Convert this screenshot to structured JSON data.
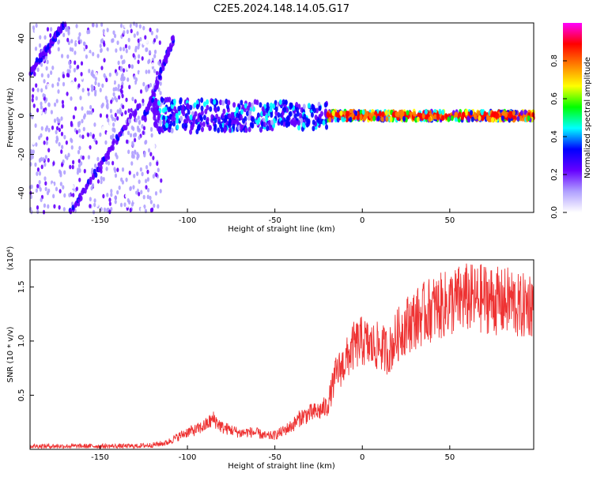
{
  "title": "C2E5.2024.148.14.05.G17",
  "chart_data": [
    {
      "type": "heatmap",
      "xlabel": "Height of straight line (km)",
      "ylabel": "Frequency (Hz)",
      "xlim": [
        -190,
        98
      ],
      "ylim": [
        -50,
        48
      ],
      "x_ticks": [
        -150,
        -100,
        -50,
        0,
        50
      ],
      "y_ticks": [
        -40,
        -20,
        0,
        20,
        40
      ],
      "colorbar": {
        "label": "Normalized spectral amplitude",
        "range": [
          0,
          1
        ],
        "ticks": [
          0.0,
          0.2,
          0.4,
          0.6,
          0.8
        ],
        "colors": [
          "#ffffff",
          "#b0a0ff",
          "#6600ff",
          "#0000ff",
          "#00ffff",
          "#00ff00",
          "#ffff00",
          "#ff8000",
          "#ff0000",
          "#ff00ff"
        ]
      },
      "features": [
        {
          "name": "steep diagonal streak",
          "x": [
            -167,
            -128
          ],
          "y": [
            -50,
            5
          ]
        },
        {
          "name": "steep diagonal streak",
          "x": [
            -125,
            -108
          ],
          "y": [
            -2,
            40
          ]
        },
        {
          "name": "diagonal streak",
          "x": [
            -190,
            -170
          ],
          "y": [
            22,
            48
          ]
        },
        {
          "name": "main band",
          "x": [
            -120,
            98
          ],
          "y_center": 0
        }
      ],
      "grid": false
    },
    {
      "type": "line",
      "xlabel": "Height of straight line (km)",
      "ylabel": "SNR (10 * v/v)",
      "y_scale_label": "(x10⁴)",
      "xlim": [
        -190,
        98
      ],
      "ylim": [
        0,
        1.75
      ],
      "x_ticks": [
        -150,
        -100,
        -50,
        0,
        50
      ],
      "y_ticks": [
        0.5,
        1.0,
        1.5
      ],
      "color": "#ee3333",
      "x": [
        -190,
        -180,
        -170,
        -160,
        -150,
        -140,
        -130,
        -120,
        -112,
        -105,
        -100,
        -95,
        -90,
        -85,
        -80,
        -75,
        -70,
        -65,
        -60,
        -55,
        -50,
        -45,
        -40,
        -35,
        -30,
        -25,
        -20,
        -15,
        -10,
        -5,
        0,
        5,
        10,
        15,
        20,
        25,
        30,
        35,
        40,
        45,
        50,
        55,
        60,
        65,
        70,
        75,
        80,
        85,
        90,
        95,
        98
      ],
      "y": [
        0.03,
        0.03,
        0.03,
        0.03,
        0.03,
        0.03,
        0.03,
        0.04,
        0.06,
        0.12,
        0.16,
        0.18,
        0.22,
        0.28,
        0.2,
        0.18,
        0.15,
        0.16,
        0.15,
        0.12,
        0.13,
        0.17,
        0.22,
        0.3,
        0.33,
        0.35,
        0.4,
        0.7,
        0.8,
        0.95,
        1.0,
        0.95,
        0.95,
        0.9,
        1.05,
        1.15,
        1.2,
        1.25,
        1.3,
        1.32,
        1.35,
        1.38,
        1.4,
        1.38,
        1.4,
        1.38,
        1.35,
        1.38,
        1.3,
        1.35,
        1.35
      ]
    }
  ]
}
